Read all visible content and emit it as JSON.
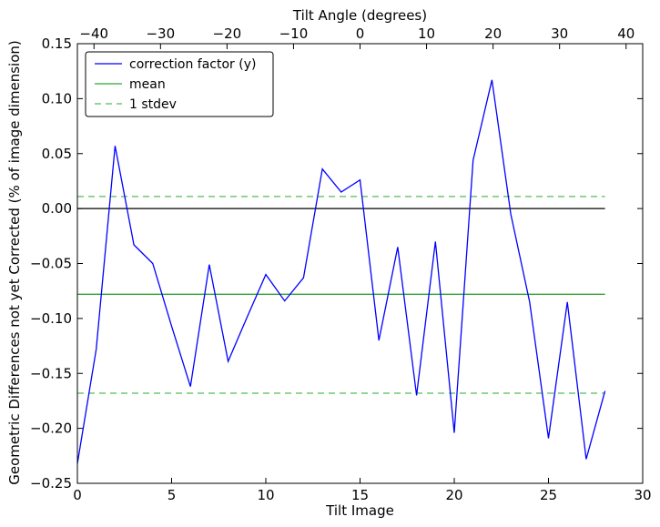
{
  "chart_data": {
    "type": "line",
    "xlabel": "Tilt Image",
    "ylabel": "Geometric Differences not yet Corrected (% of image dimension)",
    "top_xlabel": "Tilt Angle (degrees)",
    "xlim": [
      0,
      30
    ],
    "ylim": [
      -0.25,
      0.15
    ],
    "top_xlim": [
      -42.5,
      42.5
    ],
    "x_ticks": [
      0,
      5,
      10,
      15,
      20,
      25,
      30
    ],
    "x_tick_labels": [
      "0",
      "5",
      "10",
      "15",
      "20",
      "25",
      "30"
    ],
    "y_ticks": [
      0.15,
      0.1,
      0.05,
      0.0,
      -0.05,
      -0.1,
      -0.15,
      -0.2,
      -0.25
    ],
    "y_tick_labels": [
      "0.15",
      "0.10",
      "0.05",
      "0.00",
      "−0.05",
      "−0.10",
      "−0.15",
      "−0.20",
      "−0.25"
    ],
    "top_ticks": [
      -40,
      -30,
      -20,
      -10,
      0,
      10,
      20,
      30,
      40
    ],
    "top_tick_labels": [
      "−40",
      "−30",
      "−20",
      "−10",
      "0",
      "10",
      "20",
      "30",
      "40"
    ],
    "grid": false,
    "legend_position": "top-left",
    "series": [
      {
        "name": "correction factor (y)",
        "color": "#0000ff",
        "style": "solid",
        "x": [
          0,
          1,
          2,
          3,
          4,
          5,
          6,
          7,
          8,
          9,
          10,
          11,
          12,
          13,
          14,
          15,
          16,
          17,
          18,
          19,
          20,
          21,
          22,
          23,
          24,
          25,
          26,
          27,
          28
        ],
        "y": [
          -0.232,
          -0.128,
          0.057,
          -0.033,
          -0.05,
          -0.107,
          -0.162,
          -0.051,
          -0.139,
          -0.099,
          -0.06,
          -0.084,
          -0.063,
          0.036,
          0.015,
          0.026,
          -0.12,
          -0.035,
          -0.17,
          -0.03,
          -0.204,
          0.044,
          0.117,
          -0.005,
          -0.085,
          -0.209,
          -0.085,
          -0.228,
          -0.166
        ]
      },
      {
        "name": "mean",
        "color": "#33a333",
        "style": "solid",
        "x": [
          0,
          28
        ],
        "y": [
          -0.078,
          -0.078
        ]
      },
      {
        "name": "1 stdev",
        "color": "#55bb55",
        "style": "dashed",
        "x": [
          0,
          28
        ],
        "y": [
          0.011,
          0.011
        ],
        "x2": [
          0,
          28
        ],
        "y2": [
          -0.168,
          -0.168
        ]
      }
    ],
    "zero_line": {
      "color": "#000000",
      "y": 0.0,
      "x": [
        0,
        28
      ]
    }
  }
}
